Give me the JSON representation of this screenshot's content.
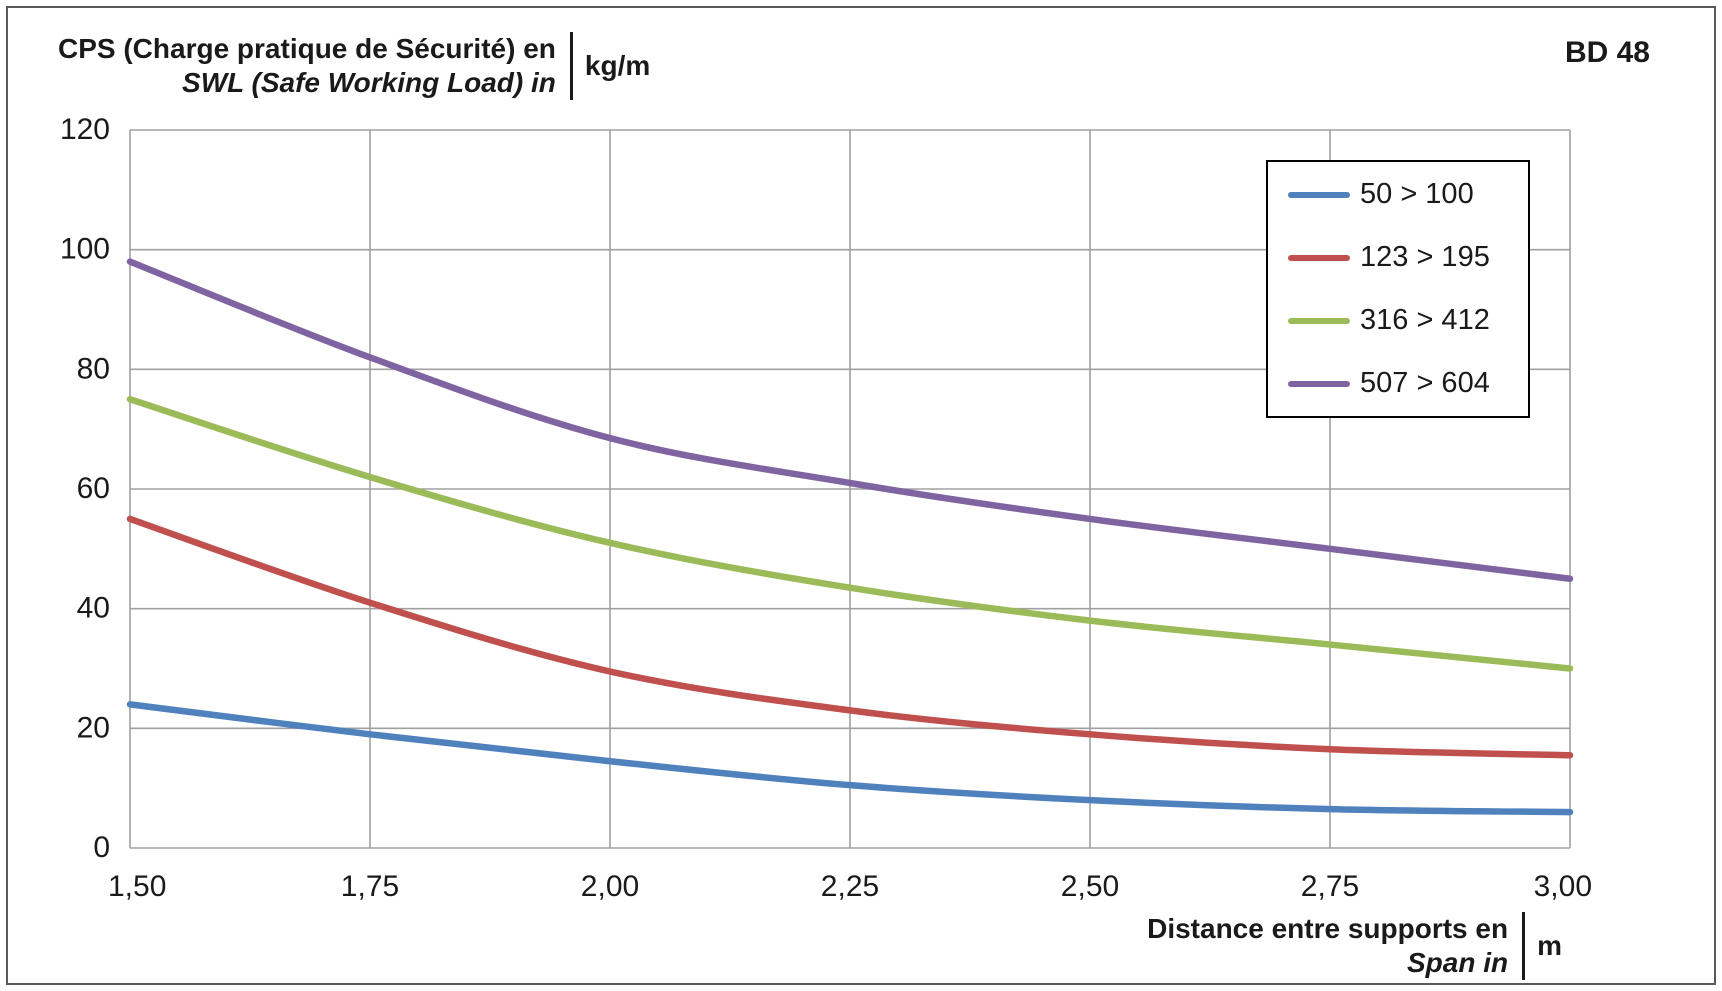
{
  "header": {
    "badge": "BD 48"
  },
  "y_axis_title": {
    "line1": "CPS (Charge pratique de Sécurité) en",
    "line2": "SWL (Safe Working Load) in",
    "unit": "kg/m"
  },
  "x_axis_title": {
    "line1": "Distance entre supports en",
    "line2": "Span in",
    "unit": "m"
  },
  "chart_data": {
    "type": "line",
    "title": "BD 48",
    "xlabel": "Distance entre supports en / Span in (m)",
    "ylabel": "CPS (Charge pratique de Sécurité) en / SWL (Safe Working Load) in (kg/m)",
    "x": [
      1.5,
      1.75,
      2.0,
      2.25,
      2.5,
      2.75,
      3.0
    ],
    "x_tick_labels": [
      "1,50",
      "1,75",
      "2,00",
      "2,25",
      "2,50",
      "2,75",
      "3,00"
    ],
    "y_ticks": [
      0,
      20,
      40,
      60,
      80,
      100,
      120
    ],
    "y_tick_labels": [
      "0",
      "20",
      "40",
      "60",
      "80",
      "100",
      "120"
    ],
    "xlim": [
      1.5,
      3.0
    ],
    "ylim": [
      0,
      120
    ],
    "grid": true,
    "legend_position": "top-right",
    "grid_color": "#a0a0a0",
    "series": [
      {
        "name": "50 > 100",
        "color": "#4f81bd",
        "values": [
          24.0,
          19.0,
          14.5,
          10.5,
          8.0,
          6.5,
          6.0
        ]
      },
      {
        "name": "123 > 195",
        "color": "#c0504d",
        "values": [
          55.0,
          41.0,
          29.5,
          23.0,
          19.0,
          16.5,
          15.5
        ]
      },
      {
        "name": "316 > 412",
        "color": "#9bbb59",
        "values": [
          75.0,
          62.0,
          51.0,
          43.5,
          38.0,
          34.0,
          30.0
        ]
      },
      {
        "name": "507 > 604",
        "color": "#8064a2",
        "values": [
          98.0,
          82.0,
          68.5,
          61.0,
          55.0,
          50.0,
          45.0
        ]
      }
    ]
  }
}
